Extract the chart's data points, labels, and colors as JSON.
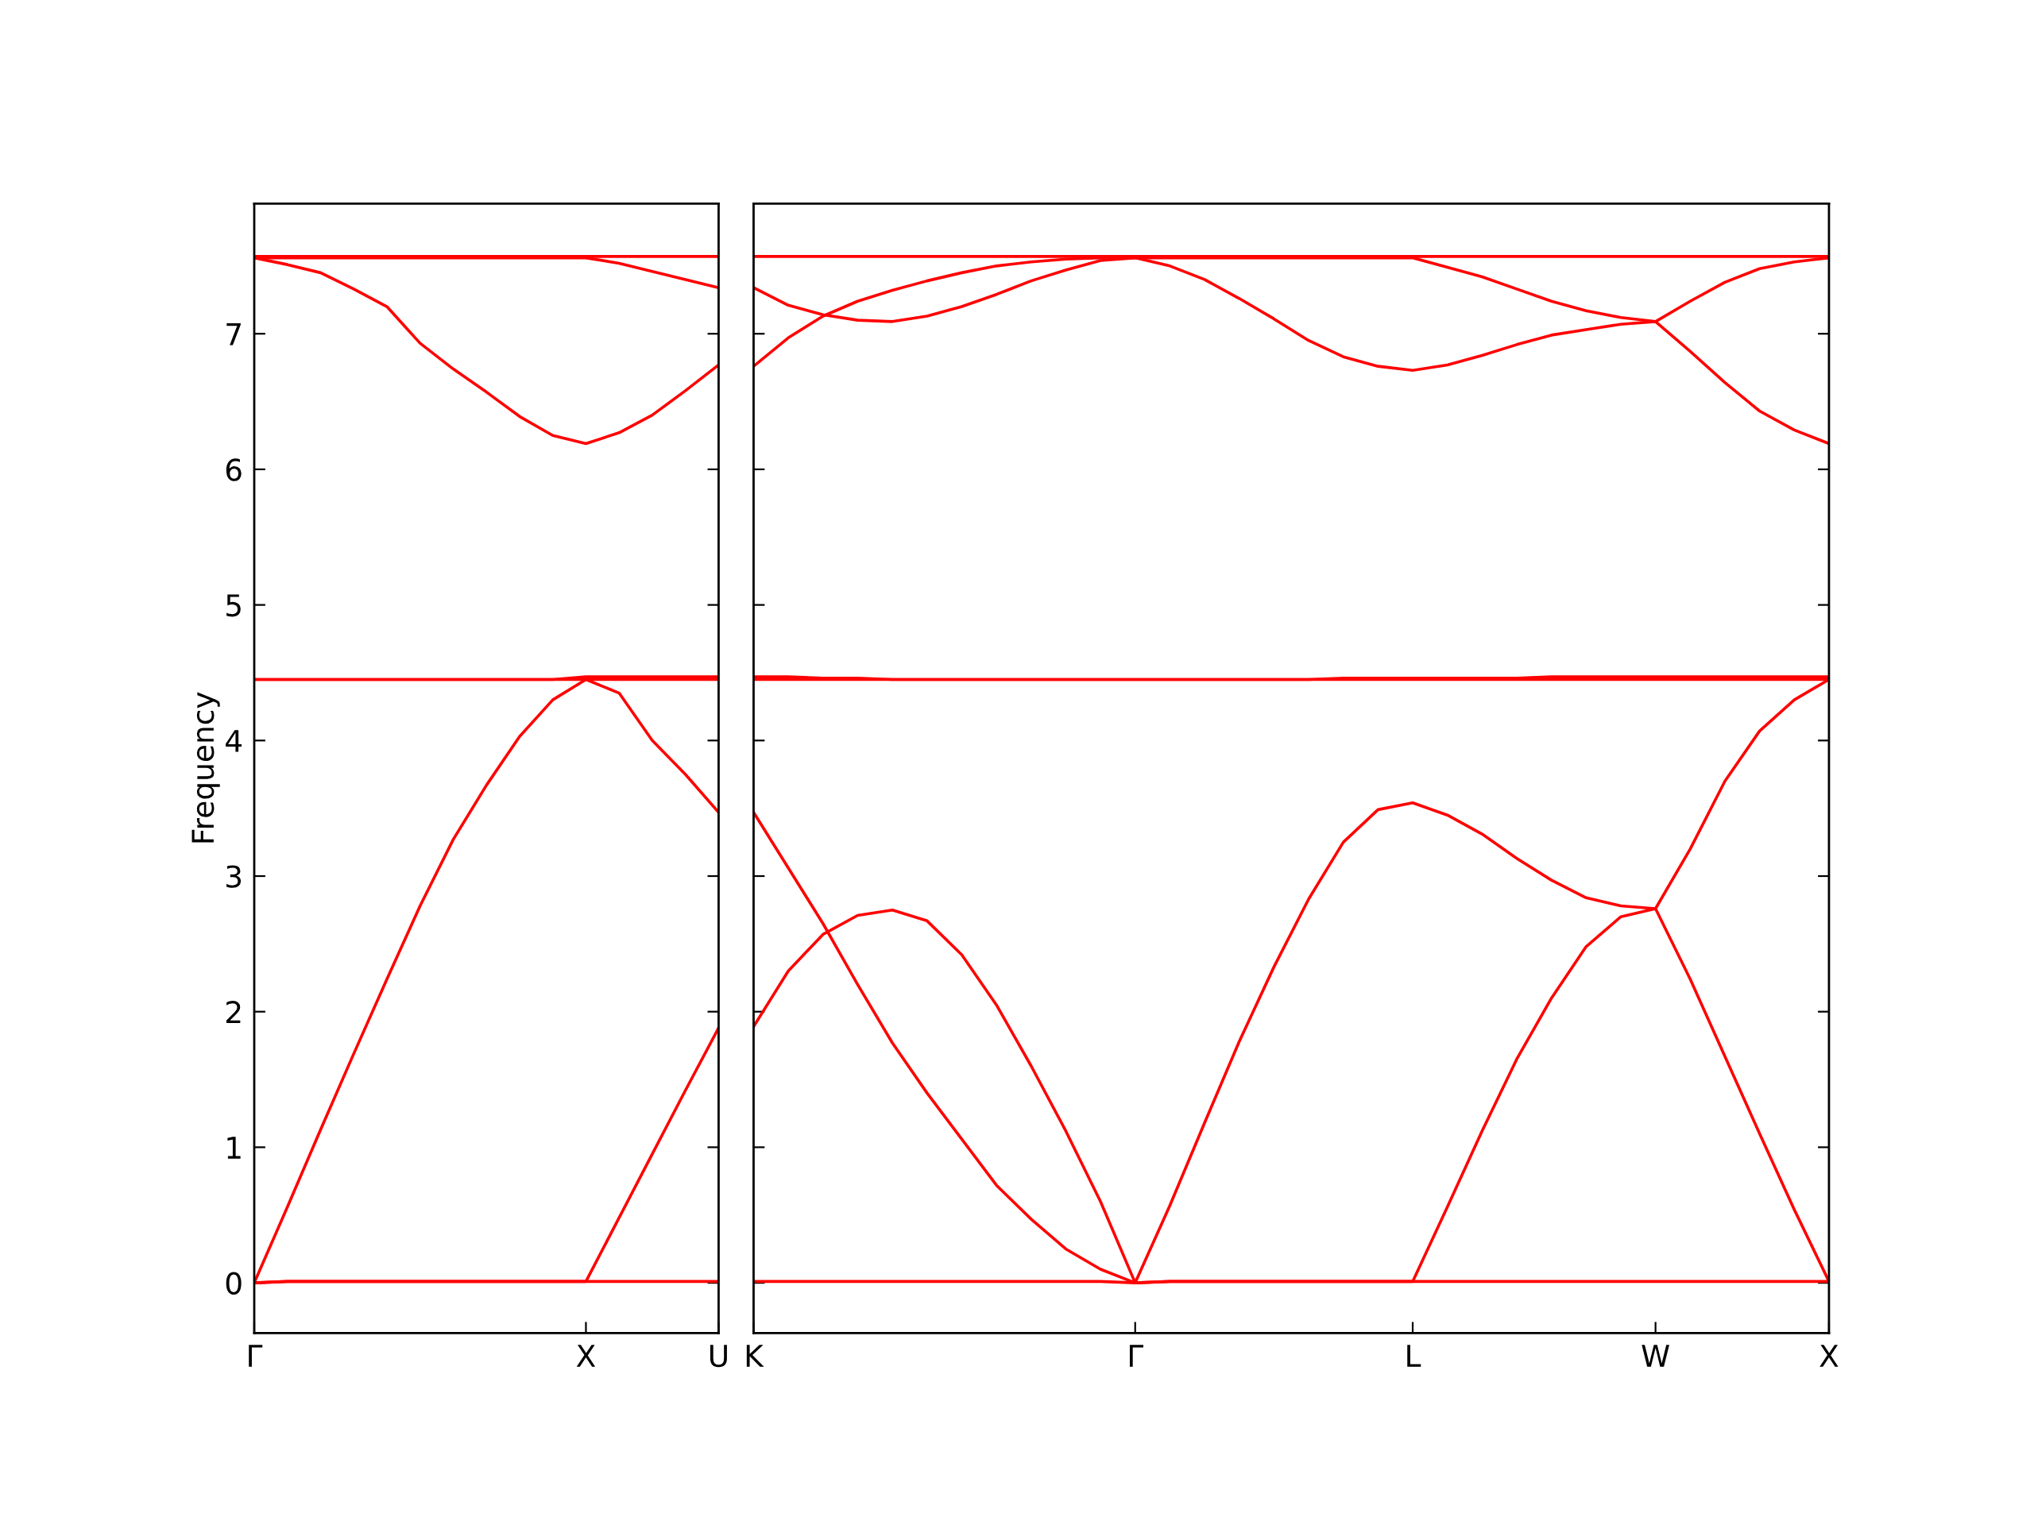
{
  "chart_data": [
    {
      "type": "line",
      "ylabel": "Frequency",
      "ylim": [
        -0.37,
        7.96
      ],
      "categories": [
        "Γ",
        null,
        null,
        null,
        null,
        null,
        null,
        null,
        null,
        null,
        "X",
        null,
        null,
        null,
        "U"
      ],
      "yticks": [
        0,
        1,
        2,
        3,
        4,
        5,
        6,
        7
      ],
      "marker": "none",
      "line_style": "solid",
      "series": [
        {
          "color": "#ff0000",
          "values": [
            0.0,
            0.01,
            0.01,
            0.01,
            0.01,
            0.01,
            0.01,
            0.01,
            0.01,
            0.01,
            0.01,
            0.01,
            0.01,
            0.01,
            0.01
          ]
        },
        {
          "color": "#ff0000",
          "values": [
            0.0,
            0.01,
            0.01,
            0.01,
            0.01,
            0.01,
            0.01,
            0.01,
            0.01,
            0.01,
            0.01,
            0.48,
            0.95,
            1.42,
            1.88
          ]
        },
        {
          "color": "#ff0000",
          "values": [
            0.0,
            0.56,
            1.13,
            1.69,
            2.24,
            2.78,
            3.27,
            3.67,
            4.03,
            4.3,
            4.45,
            4.35,
            4.0,
            3.75,
            3.47
          ]
        },
        {
          "color": "#ff0000",
          "values": [
            4.45,
            4.45,
            4.45,
            4.45,
            4.45,
            4.45,
            4.45,
            4.45,
            4.45,
            4.45,
            4.45,
            4.45,
            4.45,
            4.45,
            4.45
          ]
        },
        {
          "color": "#ff0000",
          "values": [
            4.45,
            4.45,
            4.45,
            4.45,
            4.45,
            4.45,
            4.45,
            4.45,
            4.45,
            4.45,
            4.47,
            4.47,
            4.47,
            4.47,
            4.47
          ]
        },
        {
          "color": "#ff0000",
          "values": [
            7.56,
            7.51,
            7.45,
            7.33,
            7.2,
            6.93,
            6.74,
            6.57,
            6.39,
            6.25,
            6.19,
            6.27,
            6.4,
            6.58,
            6.77
          ]
        },
        {
          "color": "#ff0000",
          "values": [
            7.56,
            7.56,
            7.56,
            7.56,
            7.56,
            7.56,
            7.56,
            7.56,
            7.56,
            7.56,
            7.56,
            7.52,
            7.46,
            7.4,
            7.34
          ]
        },
        {
          "color": "#ff0000",
          "values": [
            7.57,
            7.57,
            7.57,
            7.57,
            7.57,
            7.57,
            7.57,
            7.57,
            7.57,
            7.57,
            7.57,
            7.57,
            7.57,
            7.57,
            7.57
          ]
        }
      ]
    },
    {
      "type": "line",
      "ylim": [
        -0.37,
        7.96
      ],
      "tick_labels": "x",
      "categories": [
        "K",
        null,
        null,
        null,
        null,
        null,
        null,
        null,
        null,
        null,
        null,
        "Γ",
        null,
        null,
        null,
        null,
        null,
        null,
        null,
        "L",
        null,
        null,
        null,
        null,
        null,
        null,
        "W",
        null,
        null,
        null,
        null,
        "X"
      ],
      "yticks": [
        0,
        1,
        2,
        3,
        4,
        5,
        6,
        7
      ],
      "marker": "none",
      "line_style": "solid",
      "series": [
        {
          "color": "#ff0000",
          "values": [
            0.01,
            0.01,
            0.01,
            0.01,
            0.01,
            0.01,
            0.01,
            0.01,
            0.01,
            0.01,
            0.01,
            0.0,
            0.01,
            0.01,
            0.01,
            0.01,
            0.01,
            0.01,
            0.01,
            0.01,
            0.01,
            0.01,
            0.01,
            0.01,
            0.01,
            0.01,
            0.01,
            0.01,
            0.01,
            0.01,
            0.01,
            0.01
          ]
        },
        {
          "color": "#ff0000",
          "values": [
            3.47,
            3.06,
            2.65,
            2.2,
            1.77,
            1.4,
            1.06,
            0.72,
            0.47,
            0.25,
            0.1,
            0.0,
            0.57,
            1.18,
            1.78,
            2.33,
            2.83,
            3.25,
            3.49,
            3.54,
            3.45,
            3.31,
            3.13,
            2.97,
            2.84,
            2.78,
            2.76,
            3.2,
            3.7,
            4.07,
            4.3,
            4.45
          ]
        },
        {
          "color": "#ff0000",
          "values": [
            1.89,
            2.3,
            2.57,
            2.71,
            2.75,
            2.67,
            2.42,
            2.05,
            1.6,
            1.12,
            0.6,
            0.0,
            0.01,
            0.01,
            0.01,
            0.01,
            0.01,
            0.01,
            0.01,
            0.01,
            0.56,
            1.12,
            1.65,
            2.1,
            2.48,
            2.7,
            2.76,
            2.24,
            1.67,
            1.1,
            0.54,
            0.01
          ]
        },
        {
          "color": "#ff0000",
          "values": [
            4.45,
            4.45,
            4.45,
            4.45,
            4.45,
            4.45,
            4.45,
            4.45,
            4.45,
            4.45,
            4.45,
            4.45,
            4.45,
            4.45,
            4.45,
            4.45,
            4.45,
            4.45,
            4.45,
            4.45,
            4.45,
            4.45,
            4.45,
            4.45,
            4.45,
            4.45,
            4.45,
            4.45,
            4.45,
            4.45,
            4.45,
            4.45
          ]
        },
        {
          "color": "#ff0000",
          "values": [
            4.47,
            4.47,
            4.46,
            4.46,
            4.45,
            4.45,
            4.45,
            4.45,
            4.45,
            4.45,
            4.45,
            4.45,
            4.45,
            4.45,
            4.45,
            4.45,
            4.45,
            4.46,
            4.46,
            4.46,
            4.46,
            4.46,
            4.46,
            4.47,
            4.47,
            4.47,
            4.47,
            4.47,
            4.47,
            4.47,
            4.47,
            4.47
          ]
        },
        {
          "color": "#ff0000",
          "values": [
            7.34,
            7.21,
            7.14,
            7.1,
            7.09,
            7.13,
            7.2,
            7.29,
            7.39,
            7.47,
            7.54,
            7.56,
            7.5,
            7.4,
            7.26,
            7.11,
            6.95,
            6.83,
            6.76,
            6.73,
            6.77,
            6.84,
            6.92,
            6.99,
            7.03,
            7.07,
            7.09,
            6.87,
            6.64,
            6.43,
            6.29,
            6.19
          ]
        },
        {
          "color": "#ff0000",
          "values": [
            6.76,
            6.97,
            7.13,
            7.24,
            7.32,
            7.39,
            7.45,
            7.5,
            7.53,
            7.55,
            7.56,
            7.56,
            7.56,
            7.56,
            7.56,
            7.56,
            7.56,
            7.56,
            7.56,
            7.56,
            7.49,
            7.42,
            7.33,
            7.24,
            7.17,
            7.12,
            7.09,
            7.24,
            7.38,
            7.48,
            7.53,
            7.56
          ]
        },
        {
          "color": "#ff0000",
          "values": [
            7.57,
            7.57,
            7.57,
            7.57,
            7.57,
            7.57,
            7.57,
            7.57,
            7.57,
            7.57,
            7.57,
            7.57,
            7.57,
            7.57,
            7.57,
            7.57,
            7.57,
            7.57,
            7.57,
            7.57,
            7.57,
            7.57,
            7.57,
            7.57,
            7.57,
            7.57,
            7.57,
            7.57,
            7.57,
            7.57,
            7.57,
            7.57
          ]
        }
      ]
    }
  ]
}
